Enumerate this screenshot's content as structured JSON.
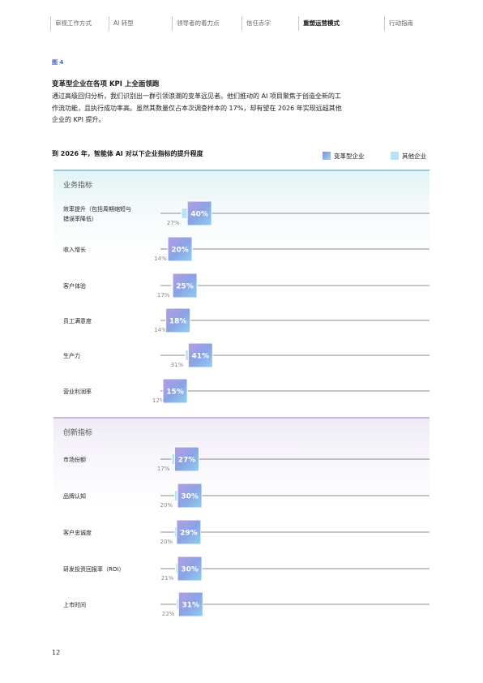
{
  "nav": {
    "items": [
      {
        "label": "审视工作方式",
        "active": false
      },
      {
        "label": "AI 转型",
        "active": false
      },
      {
        "label": "领导者的着力点",
        "active": false
      },
      {
        "label": "信任赤字",
        "active": false
      },
      {
        "label": "重塑运营模式",
        "active": true
      },
      {
        "label": "行动指南",
        "active": false
      }
    ]
  },
  "figure_label": "图 4",
  "headline": "变革型企业在各项 KPI 上全面领跑",
  "body": "通过高级回归分析，我们识别出一群引领浪潮的变革远见者。他们推动的 AI 项目聚焦于创造全新的工作流功能，且执行成功率高。虽然其数量仅占本次调查样本的 17%，却有望在 2026 年实现远超其他企业的 KPI 提升。",
  "chart_title": "到 2026 年，智能体 AI 对以下企业指标的提升程度",
  "legend": {
    "transform": "变革型企业",
    "other": "其他企业"
  },
  "colors": {
    "transform": "#8a9ae4",
    "other": "#b6e4f2",
    "line": "#8c8c8c",
    "label_other": "#888888"
  },
  "page_number": "12",
  "chart_data": {
    "type": "bar",
    "x_range": [
      0,
      45
    ],
    "series": [
      {
        "name": "变革型企业",
        "key": "transform"
      },
      {
        "name": "其他企业",
        "key": "other"
      }
    ],
    "groups": [
      {
        "title": "业务指标",
        "categories": [
          {
            "name": "效率提升（包括周期缩短与错误率降低）",
            "name_lines": [
              "效率提升（包括周期缩短与",
              "错误率降低）"
            ],
            "transform": 40,
            "other": 27
          },
          {
            "name": "收入增长",
            "name_lines": [
              "收入增长"
            ],
            "transform": 20,
            "other": 14
          },
          {
            "name": "客户体验",
            "name_lines": [
              "客户体验"
            ],
            "transform": 25,
            "other": 17
          },
          {
            "name": "员工满意度",
            "name_lines": [
              "员工满意度"
            ],
            "transform": 18,
            "other": 14
          },
          {
            "name": "生产力",
            "name_lines": [
              "生产力"
            ],
            "transform": 41,
            "other": 31
          },
          {
            "name": "营业利润率",
            "name_lines": [
              "营业利润率"
            ],
            "transform": 15,
            "other": 12
          }
        ]
      },
      {
        "title": "创新指标",
        "categories": [
          {
            "name": "市场份额",
            "name_lines": [
              "市场份额"
            ],
            "transform": 27,
            "other": 17
          },
          {
            "name": "品牌认知",
            "name_lines": [
              "品牌认知"
            ],
            "transform": 30,
            "other": 20
          },
          {
            "name": "客户忠诚度",
            "name_lines": [
              "客户忠诚度"
            ],
            "transform": 29,
            "other": 20
          },
          {
            "name": "研发投资回报率（ROI）",
            "name_lines": [
              "研发投资回报率（ROI）"
            ],
            "transform": 30,
            "other": 21
          },
          {
            "name": "上市时间",
            "name_lines": [
              "上市时间"
            ],
            "transform": 31,
            "other": 22
          }
        ]
      }
    ]
  }
}
